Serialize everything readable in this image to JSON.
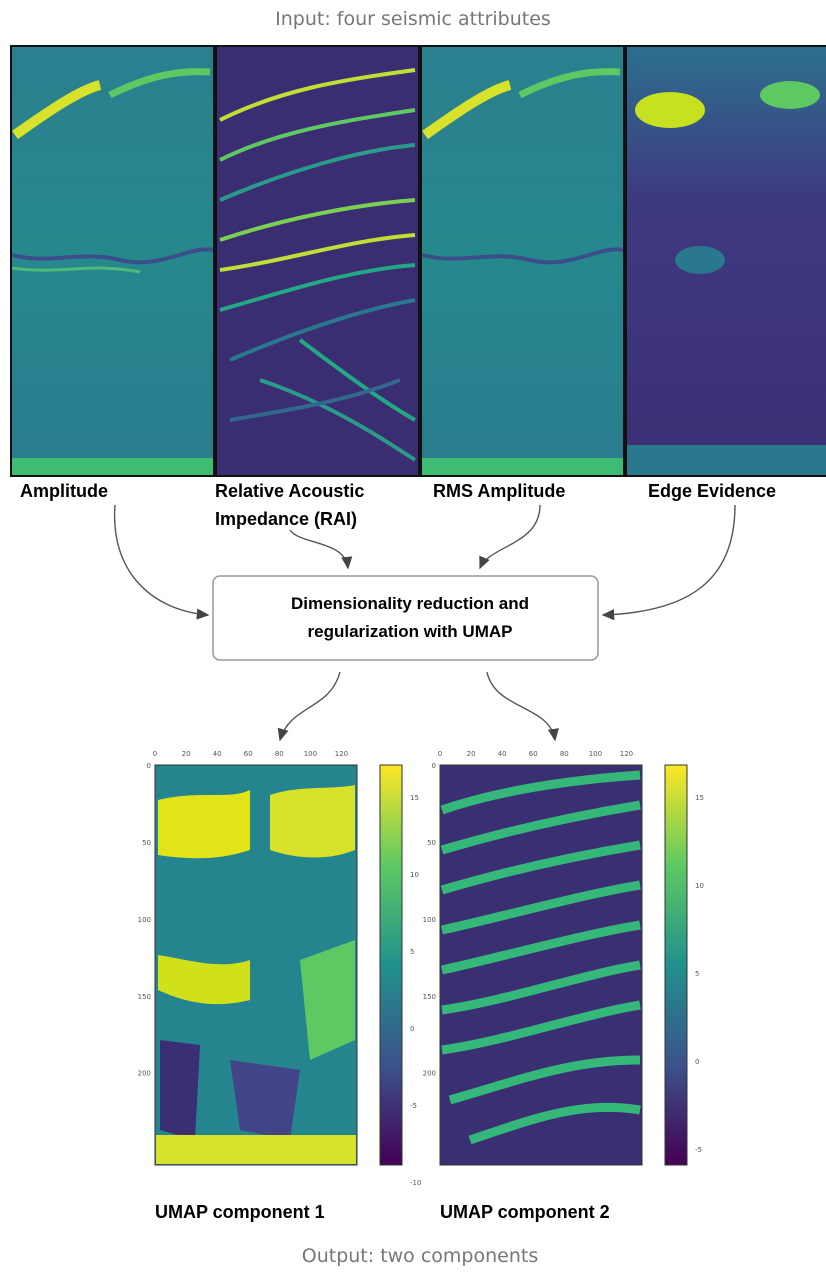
{
  "header": {
    "title": "Input: four seismic attributes"
  },
  "inputs": [
    {
      "label_lines": [
        "Amplitude"
      ]
    },
    {
      "label_lines": [
        "Relative Acoustic",
        "Impedance (RAI)"
      ]
    },
    {
      "label_lines": [
        "RMS Amplitude"
      ]
    },
    {
      "label_lines": [
        "Edge Evidence"
      ]
    }
  ],
  "process": {
    "lines": [
      "Dimensionality reduction and",
      "regularization with UMAP"
    ]
  },
  "outputs": [
    {
      "label": "UMAP component 1",
      "x_ticks": [
        0,
        20,
        40,
        60,
        80,
        100,
        120
      ],
      "y_ticks": [
        0,
        50,
        100,
        150,
        200
      ],
      "colorbar_ticks": [
        15,
        10,
        5,
        0,
        -5,
        -10
      ]
    },
    {
      "label": "UMAP component 2",
      "x_ticks": [
        0,
        20,
        40,
        60,
        80,
        100,
        120
      ],
      "y_ticks": [
        0,
        50,
        100,
        150,
        200
      ],
      "colorbar_ticks": [
        15,
        10,
        5,
        0,
        -5
      ]
    }
  ],
  "footer": {
    "caption": "Output: two components"
  }
}
